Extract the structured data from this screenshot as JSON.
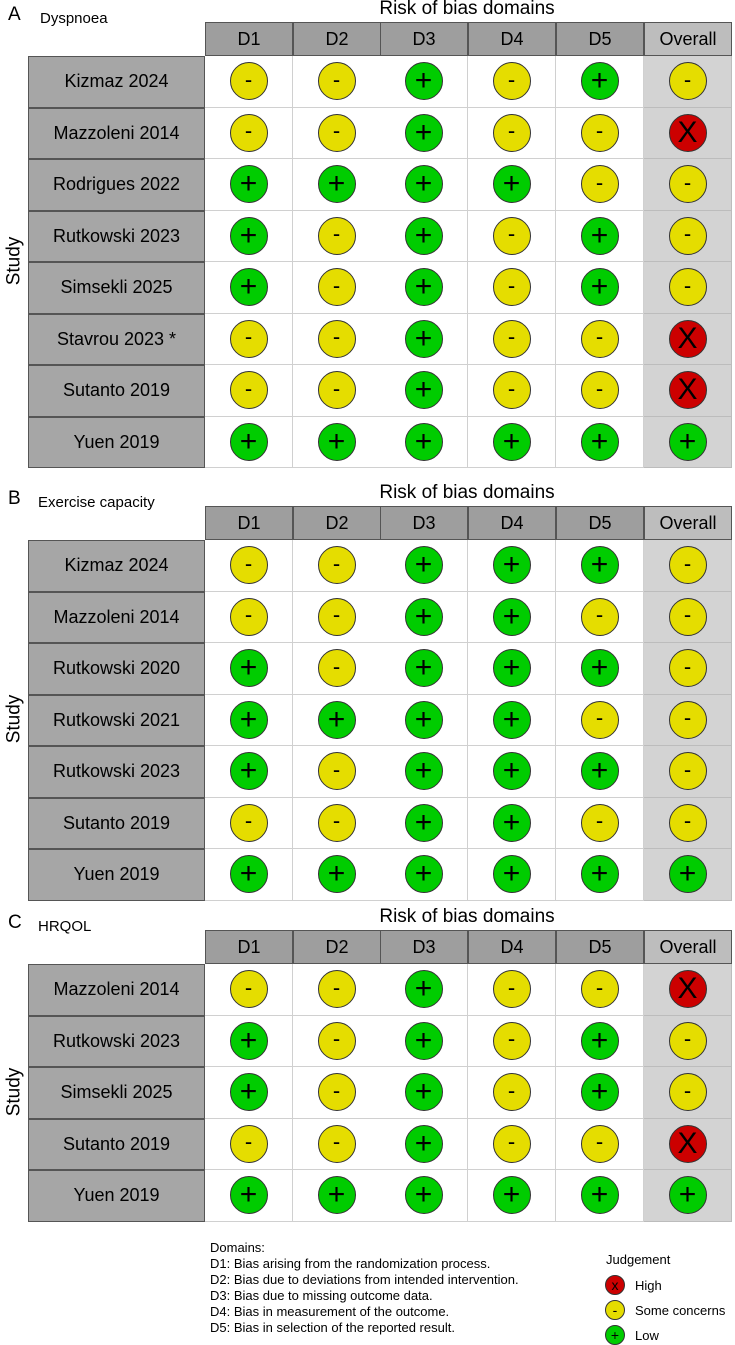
{
  "chart_data": [
    {
      "type": "table",
      "panel": "A",
      "subtitle": "Dyspnoea",
      "title": "Risk of bias domains",
      "ylabel": "Study",
      "columns": [
        "D1",
        "D2",
        "D3",
        "D4",
        "D5",
        "Overall"
      ],
      "rows": [
        {
          "study": "Kizmaz 2024",
          "j": [
            "some",
            "some",
            "low",
            "some",
            "low",
            "some"
          ]
        },
        {
          "study": "Mazzoleni 2014",
          "j": [
            "some",
            "some",
            "low",
            "some",
            "some",
            "high"
          ]
        },
        {
          "study": "Rodrigues 2022",
          "j": [
            "low",
            "low",
            "low",
            "low",
            "some",
            "some"
          ]
        },
        {
          "study": "Rutkowski 2023",
          "j": [
            "low",
            "some",
            "low",
            "some",
            "low",
            "some"
          ]
        },
        {
          "study": "Simsekli 2025",
          "j": [
            "low",
            "some",
            "low",
            "some",
            "low",
            "some"
          ]
        },
        {
          "study": "Stavrou 2023 *",
          "j": [
            "some",
            "some",
            "low",
            "some",
            "some",
            "high"
          ]
        },
        {
          "study": "Sutanto 2019",
          "j": [
            "some",
            "some",
            "low",
            "some",
            "some",
            "high"
          ]
        },
        {
          "study": "Yuen 2019",
          "j": [
            "low",
            "low",
            "low",
            "low",
            "low",
            "low"
          ]
        }
      ]
    },
    {
      "type": "table",
      "panel": "B",
      "subtitle": "Exercise capacity",
      "title": "Risk of bias domains",
      "ylabel": "Study",
      "columns": [
        "D1",
        "D2",
        "D3",
        "D4",
        "D5",
        "Overall"
      ],
      "rows": [
        {
          "study": "Kizmaz 2024",
          "j": [
            "some",
            "some",
            "low",
            "low",
            "low",
            "some"
          ]
        },
        {
          "study": "Mazzoleni 2014",
          "j": [
            "some",
            "some",
            "low",
            "low",
            "some",
            "some"
          ]
        },
        {
          "study": "Rutkowski 2020",
          "j": [
            "low",
            "some",
            "low",
            "low",
            "low",
            "some"
          ]
        },
        {
          "study": "Rutkowski 2021",
          "j": [
            "low",
            "low",
            "low",
            "low",
            "some",
            "some"
          ]
        },
        {
          "study": "Rutkowski 2023",
          "j": [
            "low",
            "some",
            "low",
            "low",
            "low",
            "some"
          ]
        },
        {
          "study": "Sutanto 2019",
          "j": [
            "some",
            "some",
            "low",
            "low",
            "some",
            "some"
          ]
        },
        {
          "study": "Yuen 2019",
          "j": [
            "low",
            "low",
            "low",
            "low",
            "low",
            "low"
          ]
        }
      ]
    },
    {
      "type": "table",
      "panel": "C",
      "subtitle": "HRQOL",
      "title": "Risk of bias domains",
      "ylabel": "Study",
      "columns": [
        "D1",
        "D2",
        "D3",
        "D4",
        "D5",
        "Overall"
      ],
      "rows": [
        {
          "study": "Mazzoleni 2014",
          "j": [
            "some",
            "some",
            "low",
            "some",
            "some",
            "high"
          ]
        },
        {
          "study": "Rutkowski 2023",
          "j": [
            "low",
            "some",
            "low",
            "some",
            "low",
            "some"
          ]
        },
        {
          "study": "Simsekli 2025",
          "j": [
            "low",
            "some",
            "low",
            "some",
            "low",
            "some"
          ]
        },
        {
          "study": "Sutanto 2019",
          "j": [
            "some",
            "some",
            "low",
            "some",
            "some",
            "high"
          ]
        },
        {
          "study": "Yuen 2019",
          "j": [
            "low",
            "low",
            "low",
            "low",
            "low",
            "low"
          ]
        }
      ]
    }
  ],
  "symbols": {
    "low": "+",
    "some": "-",
    "high": "X"
  },
  "colors": {
    "low": "#00cc00",
    "some": "#e5dd00",
    "high": "#cc0000"
  },
  "legend": {
    "domains_title": "Domains:",
    "domains": [
      "D1: Bias arising from the randomization process.",
      "D2: Bias due to deviations from intended intervention.",
      "D3: Bias due to missing outcome data.",
      "D4: Bias in measurement of the outcome.",
      "D5: Bias in selection of the reported result."
    ],
    "judgement_title": "Judgement",
    "judgements": [
      {
        "key": "high",
        "label": "High"
      },
      {
        "key": "some",
        "label": "Some concerns"
      },
      {
        "key": "low",
        "label": "Low"
      }
    ]
  }
}
